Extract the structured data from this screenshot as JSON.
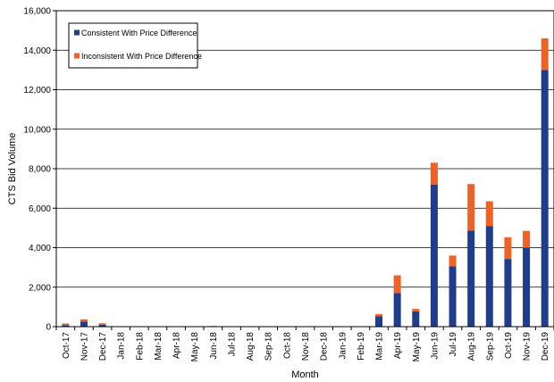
{
  "chart_data": {
    "type": "bar",
    "stacked": true,
    "categories": [
      "Oct-17",
      "Nov-17",
      "Dec-17",
      "Jan-18",
      "Feb-18",
      "Mar-18",
      "Apr-18",
      "May-18",
      "Jun-18",
      "Jul-18",
      "Aug-18",
      "Sep-18",
      "Oct-18",
      "Nov-18",
      "Dec-18",
      "Jan-19",
      "Feb-19",
      "Mar-19",
      "Apr-19",
      "May-19",
      "Jun-19",
      "Jul-19",
      "Aug-19",
      "Sep-19",
      "Oct-19",
      "Nov-19",
      "Dec-19"
    ],
    "series": [
      {
        "name": "Consistent With Price Difference",
        "color": "#203d8c",
        "values": [
          80,
          250,
          90,
          0,
          0,
          0,
          10,
          0,
          30,
          0,
          0,
          10,
          10,
          0,
          0,
          0,
          0,
          520,
          1700,
          780,
          7200,
          3050,
          4870,
          5100,
          3430,
          4000,
          13000
        ]
      },
      {
        "name": "Inconsistent With Price Difference",
        "color": "#ef6226",
        "values": [
          80,
          120,
          80,
          0,
          0,
          0,
          0,
          0,
          0,
          0,
          0,
          0,
          0,
          0,
          0,
          0,
          0,
          120,
          900,
          120,
          1100,
          550,
          2350,
          1250,
          1100,
          850,
          1600
        ]
      }
    ],
    "xlabel": "Month",
    "ylabel": "CTS Bid Volume",
    "ylim": [
      0,
      16000
    ],
    "yticks": [
      "0",
      "2,000",
      "4,000",
      "6,000",
      "8,000",
      "10,000",
      "12,000",
      "14,000",
      "16,000"
    ],
    "ytick_values": [
      0,
      2000,
      4000,
      6000,
      8000,
      10000,
      12000,
      14000,
      16000
    ],
    "grid": true,
    "legend_position": "top-left"
  }
}
